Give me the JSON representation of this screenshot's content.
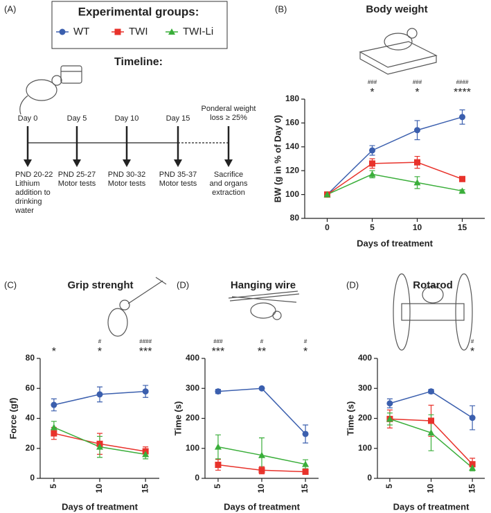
{
  "panel_a": {
    "label": "(A)",
    "legend_title": "Experimental groups:",
    "timeline_title": "Timeline:",
    "days": [
      "Day 0",
      "Day 5",
      "Day 10",
      "Day 15"
    ],
    "endpoint": [
      "Ponderal weight",
      "loss ≥ 25%"
    ],
    "events": [
      [
        "PND 20-22",
        "Lithium",
        "addition to",
        "drinking",
        "water"
      ],
      [
        "PND 25-27",
        "Motor tests"
      ],
      [
        "PND 30-32",
        "Motor tests"
      ],
      [
        "PND 35-37",
        "Motor tests"
      ],
      [
        "Sacrifice",
        "and organs",
        "extraction"
      ]
    ]
  },
  "chart_data": [
    {
      "type": "line",
      "panel": "(B)",
      "title": "Body weight",
      "xlabel": "Days of treatment",
      "ylabel": "BW (g in % of Day 0)",
      "x": [
        0,
        5,
        10,
        15
      ],
      "xlim": [
        -2.5,
        17.5
      ],
      "xticks": [
        0,
        5,
        10,
        15
      ],
      "ylim": [
        80,
        180
      ],
      "yticks": [
        80,
        100,
        120,
        140,
        160,
        180
      ],
      "series": [
        {
          "name": "WT",
          "color": "#3b5fae",
          "marker": "circle",
          "values": [
            100,
            137,
            154,
            165
          ],
          "errors": [
            0,
            4,
            8,
            6
          ]
        },
        {
          "name": "TWI",
          "color": "#e8322b",
          "marker": "square",
          "values": [
            100,
            126,
            127,
            113
          ],
          "errors": [
            0,
            4,
            5,
            2
          ]
        },
        {
          "name": "TWI-Li",
          "color": "#3aae3a",
          "marker": "triangle",
          "values": [
            100,
            117,
            110,
            103
          ],
          "errors": [
            0,
            3,
            5,
            1
          ]
        }
      ],
      "sig_hash": [
        null,
        "###",
        "###",
        "####"
      ],
      "sig_star": [
        null,
        "*",
        "*",
        "****"
      ]
    },
    {
      "type": "line",
      "panel": "(C)",
      "title": "Grip strenght",
      "xlabel": "Days of treatment",
      "ylabel": "Force (gf)",
      "x": [
        5,
        10,
        15
      ],
      "xlim": [
        3.5,
        16.5
      ],
      "xticks": [
        5,
        10,
        15
      ],
      "ylim": [
        0,
        80
      ],
      "yticks": [
        0,
        20,
        40,
        60,
        80
      ],
      "series": [
        {
          "color": "#3b5fae",
          "marker": "circle",
          "values": [
            49,
            56,
            58
          ],
          "errors": [
            4,
            5,
            4
          ]
        },
        {
          "color": "#e8322b",
          "marker": "square",
          "values": [
            30,
            23,
            18
          ],
          "errors": [
            4,
            7,
            3
          ]
        },
        {
          "color": "#3aae3a",
          "marker": "triangle",
          "values": [
            34,
            21,
            16
          ],
          "errors": [
            4,
            7,
            3
          ]
        }
      ],
      "sig_hash": [
        null,
        "#",
        "####"
      ],
      "sig_star": [
        "*",
        "*",
        "***"
      ]
    },
    {
      "type": "line",
      "panel": "(D)",
      "title": "Hanging wire",
      "xlabel": "Days of treatment",
      "ylabel": "Time (s)",
      "x": [
        5,
        10,
        15
      ],
      "xlim": [
        3.5,
        16.5
      ],
      "xticks": [
        5,
        10,
        15
      ],
      "ylim": [
        0,
        400
      ],
      "yticks": [
        0,
        100,
        200,
        300,
        400
      ],
      "series": [
        {
          "color": "#3b5fae",
          "marker": "circle",
          "values": [
            290,
            300,
            148
          ],
          "errors": [
            7,
            3,
            30
          ]
        },
        {
          "color": "#e8322b",
          "marker": "square",
          "values": [
            45,
            27,
            22
          ],
          "errors": [
            18,
            12,
            8
          ]
        },
        {
          "color": "#3aae3a",
          "marker": "triangle",
          "values": [
            105,
            77,
            47
          ],
          "errors": [
            40,
            58,
            15
          ]
        }
      ],
      "sig_hash": [
        "###",
        "#",
        "#"
      ],
      "sig_star": [
        "***",
        "**",
        "*"
      ]
    },
    {
      "type": "line",
      "panel": "(D)",
      "title": "Rotarod",
      "xlabel": "Days of treatment",
      "ylabel": "Time (s)",
      "x": [
        5,
        10,
        15
      ],
      "xlim": [
        3.5,
        16.5
      ],
      "xticks": [
        5,
        10,
        15
      ],
      "ylim": [
        0,
        400
      ],
      "yticks": [
        0,
        100,
        200,
        300,
        400
      ],
      "series": [
        {
          "color": "#3b5fae",
          "marker": "circle",
          "values": [
            250,
            290,
            202
          ],
          "errors": [
            15,
            7,
            40
          ]
        },
        {
          "color": "#e8322b",
          "marker": "square",
          "values": [
            198,
            192,
            47
          ],
          "errors": [
            30,
            52,
            20
          ]
        },
        {
          "color": "#3aae3a",
          "marker": "triangle",
          "values": [
            198,
            152,
            35
          ],
          "errors": [
            20,
            60,
            10
          ]
        }
      ],
      "sig_hash": [
        null,
        null,
        "#"
      ],
      "sig_star": [
        null,
        null,
        "*"
      ]
    }
  ]
}
